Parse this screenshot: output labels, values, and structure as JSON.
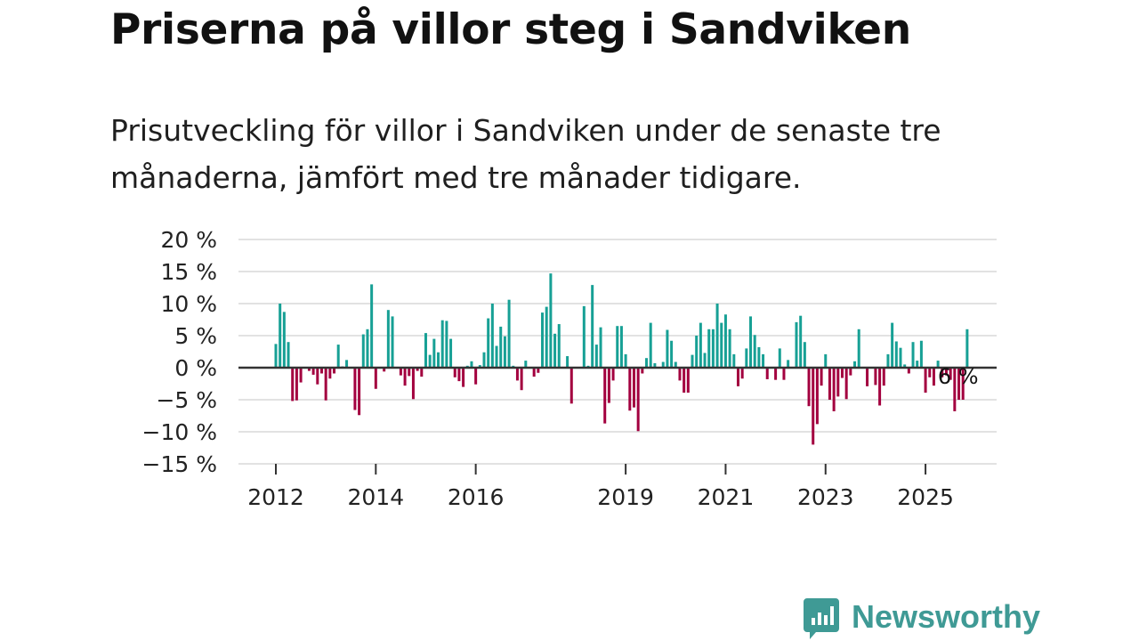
{
  "title": "Priserna på villor steg i Sandviken",
  "subtitle": "Prisutveckling för villor i Sandviken under de senaste tre månaderna, jämfört med tre månader tidigare.",
  "brand": {
    "name": "Newsworthy"
  },
  "colors": {
    "positive": "#17a095",
    "negative": "#a3003f",
    "grid": "#d9d9d9",
    "zero": "#333333",
    "brand": "#3f9a95"
  },
  "chart_data": {
    "type": "bar",
    "title": "Priserna på villor steg i Sandviken",
    "xlabel": "",
    "ylabel": "",
    "ylim": [
      -15,
      20
    ],
    "yticks": [
      20,
      15,
      10,
      5,
      0,
      -5,
      -10,
      -15
    ],
    "ytick_labels": [
      "20 %",
      "15 %",
      "10 %",
      "5 %",
      "0 %",
      "−5 %",
      "−10 %",
      "−15 %"
    ],
    "x_start": "2012-01",
    "x_ticks": [
      {
        "label": "2012",
        "index": 0
      },
      {
        "label": "2014",
        "index": 24
      },
      {
        "label": "2016",
        "index": 48
      },
      {
        "label": "2019",
        "index": 84
      },
      {
        "label": "2021",
        "index": 108
      },
      {
        "label": "2023",
        "index": 132
      },
      {
        "label": "2025",
        "index": 156
      }
    ],
    "annotation": {
      "text": "6 %",
      "index": 164
    },
    "values": [
      3.7,
      10.0,
      8.7,
      4.0,
      -5.2,
      -5.1,
      -2.3,
      0,
      -0.5,
      -1.1,
      -2.6,
      -0.9,
      -5.1,
      -1.7,
      -0.9,
      3.6,
      0.2,
      1.2,
      0,
      -6.6,
      -7.4,
      5.2,
      6.0,
      13.0,
      -3.3,
      0,
      -0.6,
      9.0,
      8.0,
      0,
      -1.2,
      -2.8,
      -1.3,
      -4.9,
      -0.5,
      -1.4,
      5.4,
      2.0,
      4.5,
      2.4,
      7.4,
      7.3,
      4.5,
      -1.5,
      -2.1,
      -3.0,
      0.3,
      1.0,
      -2.6,
      0.4,
      2.4,
      7.7,
      10.0,
      3.4,
      6.4,
      4.9,
      10.6,
      0.3,
      -2.0,
      -3.5,
      1.1,
      0,
      -1.4,
      -0.8,
      8.6,
      9.5,
      14.7,
      5.3,
      6.8,
      0,
      1.8,
      -5.6,
      0,
      0,
      9.6,
      0.3,
      12.9,
      3.6,
      6.3,
      -8.7,
      -5.5,
      -2.0,
      6.5,
      6.5,
      2.1,
      -6.7,
      -6.2,
      -9.9,
      -0.9,
      1.5,
      7.0,
      0.7,
      0,
      0.9,
      5.9,
      4.2,
      0.9,
      -2.0,
      -3.9,
      -3.9,
      2.0,
      5.0,
      7.0,
      2.3,
      6.0,
      6.0,
      10.0,
      7.0,
      8.3,
      6.0,
      2.1,
      -2.9,
      -1.7,
      3.0,
      8.0,
      5.1,
      3.2,
      2.1,
      -1.8,
      0,
      -1.9,
      3.0,
      -1.9,
      1.2,
      0,
      7.1,
      8.1,
      4.0,
      -6.0,
      -12.0,
      -8.8,
      -2.8,
      2.1,
      -5.0,
      -6.8,
      -4.5,
      -1.6,
      -4.9,
      -1.2,
      1.0,
      6.0,
      0,
      -2.9,
      0,
      -2.7,
      -5.9,
      -2.8,
      2.1,
      7.0,
      4.1,
      3.1,
      0.5,
      -0.9,
      4.0,
      1.1,
      4.2,
      -3.9,
      -1.5,
      -2.8,
      1.1,
      -1.5,
      -1.2,
      -1.9,
      -6.8,
      -5.0,
      -5.0,
      6.0
    ]
  }
}
